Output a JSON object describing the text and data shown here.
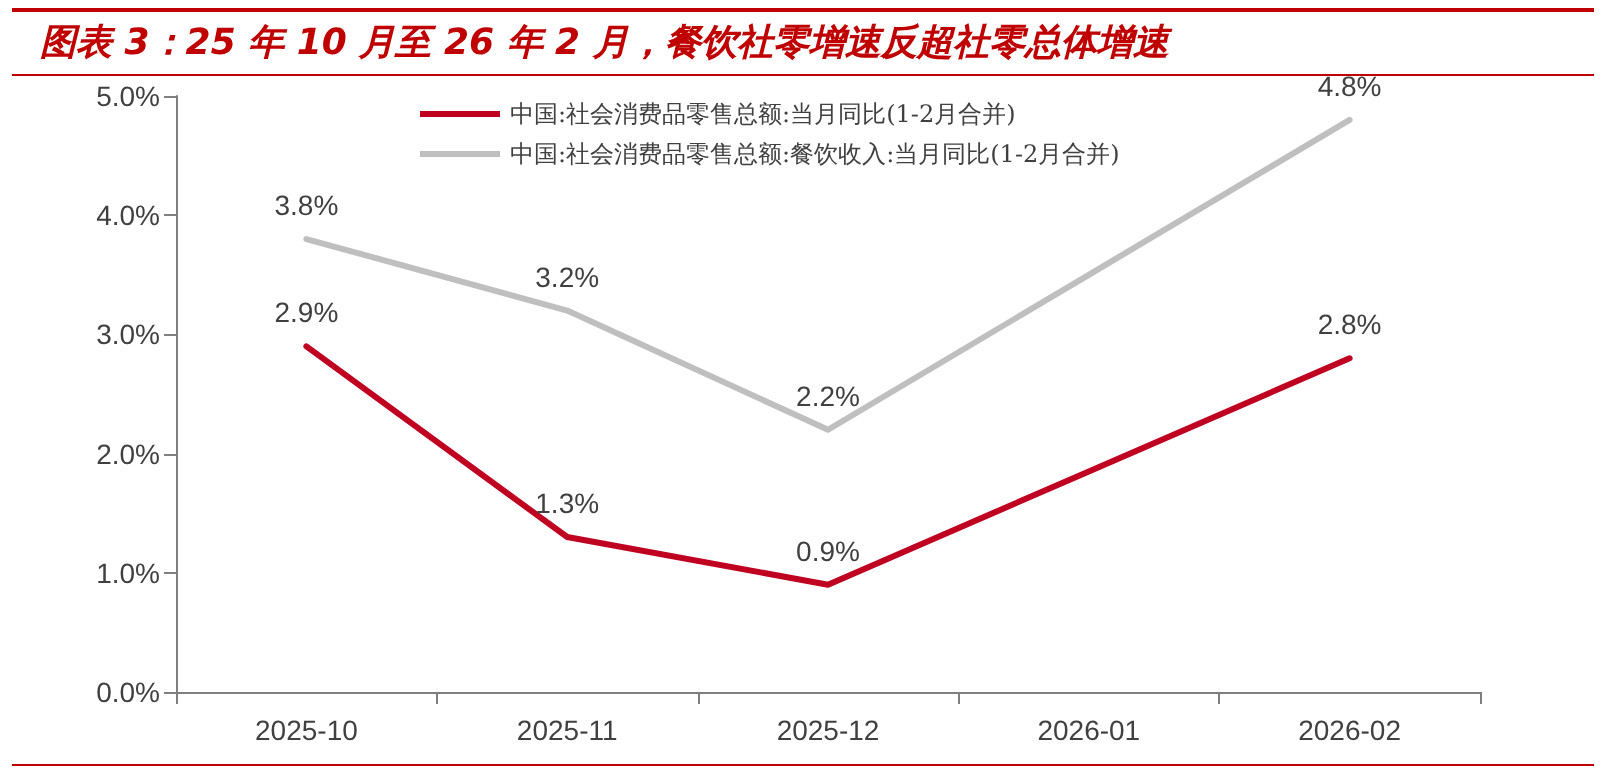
{
  "chart_data": {
    "type": "line",
    "title": "图表 3：25 年 10 月至 26 年 2 月，餐饮社零增速反超社零总体增速",
    "categories": [
      "2025-10",
      "2025-11",
      "2025-12",
      "2026-01",
      "2026-02"
    ],
    "series": [
      {
        "name": "中国:社会消费品零售总额:当月同比(1-2月合并)",
        "color": "#c00020",
        "values": [
          2.9,
          1.3,
          0.9,
          1.85,
          2.8
        ],
        "value_labels": [
          "2.9%",
          "1.3%",
          "0.9%",
          null,
          "2.8%"
        ]
      },
      {
        "name": "中国:社会消费品零售总额:餐饮收入:当月同比(1-2月合并)",
        "color": "#bfbfbf",
        "values": [
          3.8,
          3.2,
          2.2,
          3.5,
          4.8
        ],
        "value_labels": [
          "3.8%",
          "3.2%",
          "2.2%",
          null,
          "4.8%"
        ]
      }
    ],
    "ylim": [
      0,
      5
    ],
    "yticks": [
      {
        "value": 0,
        "label": "0.0%"
      },
      {
        "value": 1,
        "label": "1.0%"
      },
      {
        "value": 2,
        "label": "2.0%"
      },
      {
        "value": 3,
        "label": "3.0%"
      },
      {
        "value": 4,
        "label": "4.0%"
      },
      {
        "value": 5,
        "label": "5.0%"
      }
    ],
    "grid": false,
    "legend": "top",
    "marker": "none",
    "line_style": "solid"
  }
}
